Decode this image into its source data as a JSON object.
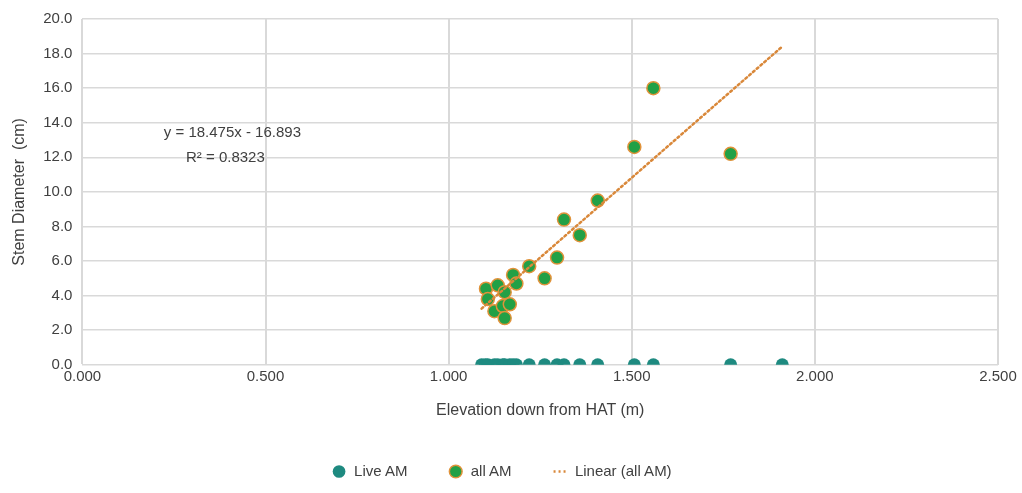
{
  "chart_data": {
    "type": "scatter",
    "xlabel": "Elevation down from HAT (m)",
    "ylabel": "Stem Diameter  (cm)",
    "xlim": [
      0,
      2.5
    ],
    "xticks": [
      {
        "value": 0,
        "label": "0.000"
      },
      {
        "value": 0.5,
        "label": "0.500"
      },
      {
        "value": 1,
        "label": "1.000"
      },
      {
        "value": 1.5,
        "label": "1.500"
      },
      {
        "value": 2,
        "label": "2.000"
      },
      {
        "value": 2.5,
        "label": "2.500"
      }
    ],
    "ylim": [
      0,
      20
    ],
    "yticks": [
      {
        "value": 0,
        "label": "0.0"
      },
      {
        "value": 2,
        "label": "2.0"
      },
      {
        "value": 4,
        "label": "4.0"
      },
      {
        "value": 6,
        "label": "6.0"
      },
      {
        "value": 8,
        "label": "8.0"
      },
      {
        "value": 10,
        "label": "10.0"
      },
      {
        "value": 12,
        "label": "12.0"
      },
      {
        "value": 14,
        "label": "14.0"
      },
      {
        "value": 16,
        "label": "16.0"
      },
      {
        "value": 18,
        "label": "18.0"
      },
      {
        "value": 20,
        "label": "20.0"
      }
    ],
    "grid": true,
    "legend": "bottom",
    "marker": "circle",
    "annotations": [
      "y = 18.475x - 16.893",
      "R² = 0.8323"
    ],
    "series": [
      {
        "name": "Live AM",
        "color": "#1e8a80",
        "x": [
          1.09,
          1.1,
          1.107,
          1.125,
          1.134,
          1.148,
          1.153,
          1.167,
          1.176,
          1.185,
          1.22,
          1.262,
          1.296,
          1.315,
          1.358,
          1.407,
          1.507,
          1.559,
          1.77,
          1.911
        ],
        "values": [
          0,
          0,
          0,
          0,
          0,
          0,
          0,
          0,
          0,
          0,
          0,
          0,
          0,
          0,
          0,
          0,
          0,
          0,
          0,
          0
        ]
      },
      {
        "name": "all AM",
        "color": "#22a046",
        "x": [
          1.102,
          1.107,
          1.125,
          1.134,
          1.148,
          1.153,
          1.153,
          1.167,
          1.176,
          1.185,
          1.22,
          1.262,
          1.296,
          1.315,
          1.358,
          1.407,
          1.507,
          1.559,
          1.77
        ],
        "values": [
          4.4,
          3.8,
          3.1,
          4.6,
          3.4,
          4.2,
          2.7,
          3.5,
          5.2,
          4.7,
          5.7,
          5.0,
          6.2,
          8.4,
          7.5,
          9.5,
          12.6,
          16.0,
          12.2
        ]
      },
      {
        "name": "Linear (all AM)",
        "type": "line",
        "color": "#d9883a",
        "line_style": "dotted",
        "marker": "none",
        "x": [
          1.09,
          1.91
        ],
        "values": [
          3.25,
          18.39
        ]
      }
    ]
  }
}
